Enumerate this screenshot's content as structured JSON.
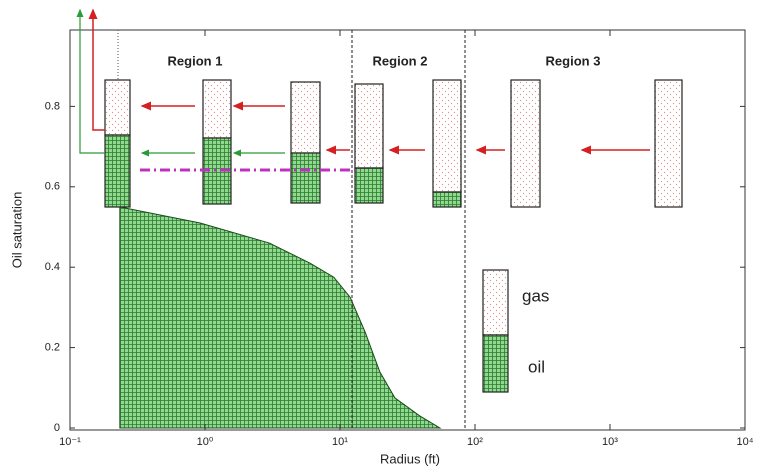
{
  "chart_data": {
    "type": "area",
    "x_label": "Radius (ft)",
    "y_label": "Oil saturation",
    "x": [
      0.234,
      0.234,
      0.92,
      3.0,
      6.0,
      9.0,
      11.9,
      15.3,
      19.7,
      25.5,
      39,
      55
    ],
    "values": [
      0,
      0.55,
      0.51,
      0.46,
      0.41,
      0.375,
      0.325,
      0.24,
      0.14,
      0.075,
      0.03,
      0
    ],
    "color": "#6cc66c",
    "xscale": "log",
    "xlim": [
      0.1,
      10000
    ],
    "xticks": [
      {
        "value": 0.1,
        "label": "10⁻¹"
      },
      {
        "value": 1,
        "label": "10⁰"
      },
      {
        "value": 10,
        "label": "10¹"
      },
      {
        "value": 100,
        "label": "10²"
      },
      {
        "value": 1000,
        "label": "10³"
      },
      {
        "value": 10000,
        "label": "10⁴"
      }
    ],
    "ylim": [
      0,
      0.99
    ],
    "yticks": [
      0,
      0.2,
      0.4,
      0.6,
      0.8
    ],
    "annotations": [
      "Region 1",
      "Region 2",
      "Region 3",
      "gas",
      "oil"
    ]
  }
}
